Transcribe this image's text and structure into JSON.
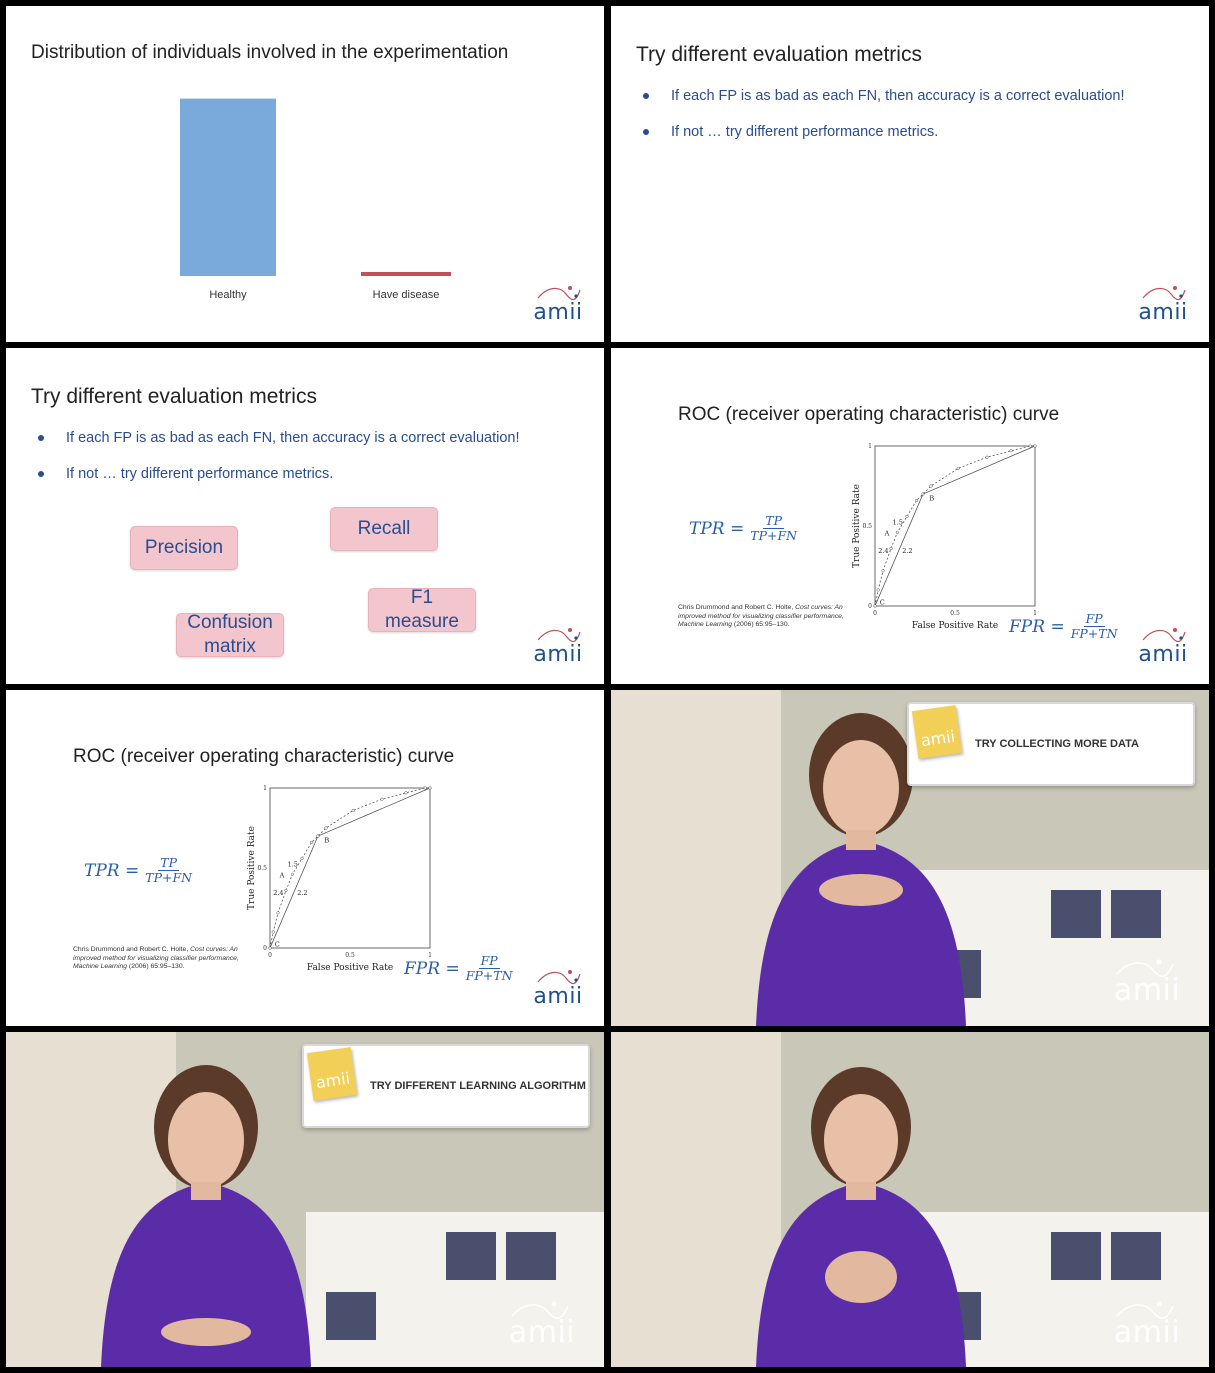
{
  "panel1": {
    "title": "Distribution of individuals involved in the experimentation",
    "chart_data": {
      "type": "bar",
      "categories": [
        "Healthy",
        "Have disease"
      ],
      "values": [
        98,
        2
      ],
      "colors": [
        "#7aa9dc",
        "#c0505b"
      ],
      "title": "Distribution of individuals involved in the experimentation",
      "xlabel": "",
      "ylabel": "",
      "ylim": [
        0,
        100
      ],
      "grid": false
    }
  },
  "panel2": {
    "title": "Try different evaluation metrics",
    "bullets": [
      "If each FP is as bad as each FN, then accuracy is a correct evaluation!",
      "If not … try different performance metrics."
    ]
  },
  "panel3": {
    "title": "Try different evaluation metrics",
    "bullets": [
      "If each FP is as bad as each FN, then accuracy is a correct evaluation!",
      "If not … try different performance metrics."
    ],
    "chips": {
      "precision": "Precision",
      "recall": "Recall",
      "confusion_1": "Confusion",
      "confusion_2": "matrix",
      "f1_1": "F1",
      "f1_2": "measure"
    }
  },
  "roc": {
    "title": "ROC (receiver operating characteristic) curve",
    "tpr_lhs": "TPR =",
    "tpr_num": "TP",
    "tpr_den": "TP+FN",
    "fpr_lhs": "FPR =",
    "fpr_num": "FP",
    "fpr_den": "FP+TN",
    "citation_plain": "Chris Drummond and Robert C. Holte, ",
    "citation_italic": "Cost curves: An improved method for visualizing classifier performance, Machine Learning",
    "citation_tail": " (2006) 65:95–130.",
    "chart_data": {
      "type": "line",
      "xlabel": "False Positive Rate",
      "ylabel": "True Positive Rate",
      "xlim": [
        0,
        1
      ],
      "ylim": [
        0,
        1
      ],
      "xticks": [
        "0",
        "0.5",
        "1"
      ],
      "yticks": [
        "0",
        "0.5",
        "1"
      ],
      "series": [
        {
          "style": "solid",
          "x": [
            0,
            0.3,
            1
          ],
          "y": [
            0,
            0.7,
            1
          ]
        },
        {
          "style": "dashed",
          "x": [
            0,
            0.02,
            0.05,
            0.1,
            0.14,
            0.2,
            0.26,
            0.35,
            0.52,
            0.7,
            0.85,
            0.97,
            1
          ],
          "y": [
            0,
            0.1,
            0.22,
            0.36,
            0.46,
            0.56,
            0.66,
            0.75,
            0.86,
            0.93,
            0.97,
            1,
            1
          ]
        }
      ],
      "point_labels": [
        {
          "text": "A",
          "x": 0.06,
          "y": 0.44
        },
        {
          "text": "B",
          "x": 0.34,
          "y": 0.66
        },
        {
          "text": "C",
          "x": 0.03,
          "y": 0.01
        },
        {
          "text": "1.5",
          "x": 0.11,
          "y": 0.51
        },
        {
          "text": "2.4",
          "x": 0.02,
          "y": 0.33
        },
        {
          "text": "2.2",
          "x": 0.17,
          "y": 0.33
        }
      ]
    }
  },
  "logo_text": "amii",
  "video1": {
    "banner": "TRY COLLECTING MORE DATA"
  },
  "video2": {
    "banner": "TRY DIFFERENT LEARNING ALGORITHM"
  }
}
